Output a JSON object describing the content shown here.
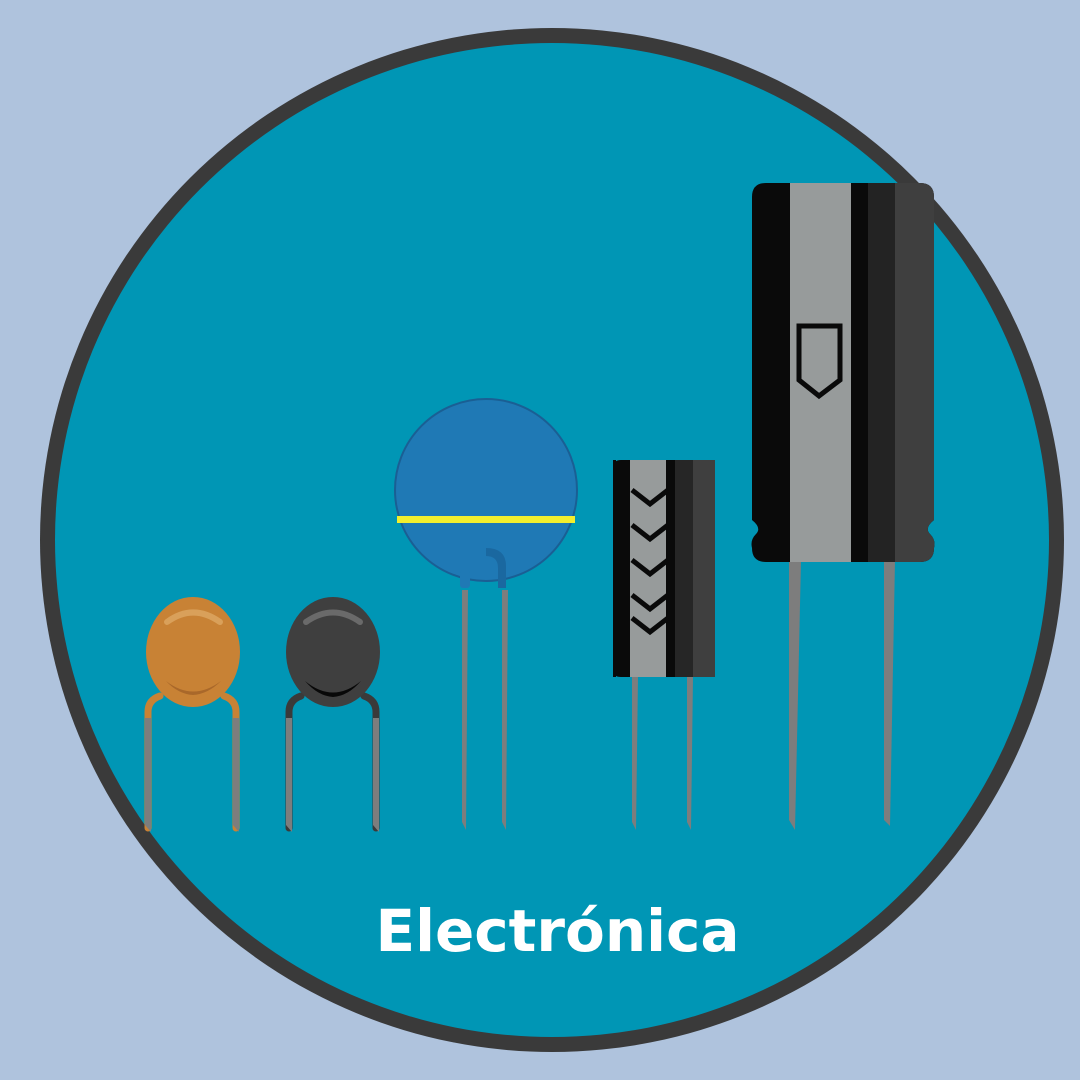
{
  "caption": "Electrónica",
  "colors": {
    "background": "#afc3dd",
    "ring": "#3a3a3a",
    "disc": "#0096b5",
    "ceramic_capacitor": "#c88235",
    "dark_capacitor": "#3f3f3f",
    "blue_capacitor": "#1f79b5",
    "stripe": "#f2ee2e",
    "lead": "#7d7d7d",
    "sleeve_gray": "#979b9b",
    "sleeve_black": "#0a0a0a"
  },
  "icons": [
    "ceramic-disc-capacitor-icon",
    "black-disc-capacitor-icon",
    "blue-disc-capacitor-icon",
    "small-electrolytic-capacitor-icon",
    "large-electrolytic-capacitor-icon"
  ]
}
